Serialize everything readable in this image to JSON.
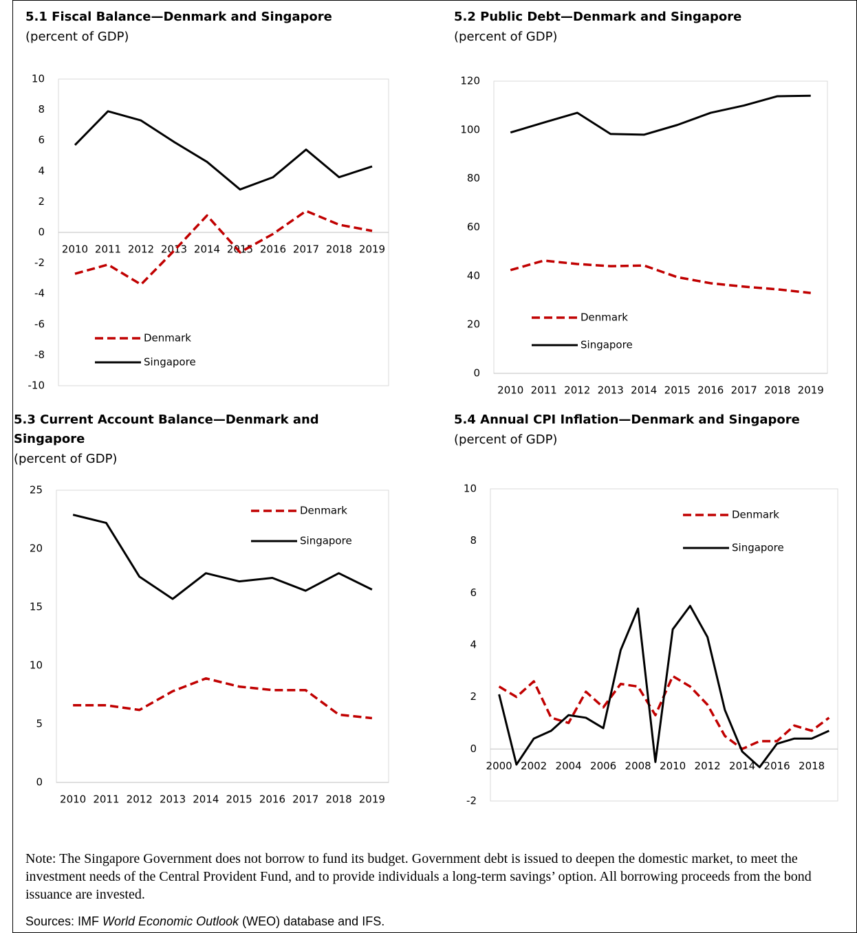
{
  "chart_data": [
    {
      "type": "line",
      "title": "5.1 Fiscal Balance—Denmark and Singapore",
      "subtitle": "(percent of GDP)",
      "categories": [
        "2010",
        "2011",
        "2012",
        "2013",
        "2014",
        "2015",
        "2016",
        "2017",
        "2018",
        "2019"
      ],
      "series": [
        {
          "name": "Denmark",
          "color": "#c00000",
          "dash": true,
          "values": [
            -2.7,
            -2.1,
            -3.4,
            -1.2,
            1.1,
            -1.3,
            -0.1,
            1.4,
            0.5,
            0.1
          ]
        },
        {
          "name": "Singapore",
          "color": "#000000",
          "dash": false,
          "values": [
            5.7,
            7.9,
            7.3,
            5.9,
            4.6,
            2.8,
            3.6,
            5.4,
            3.6,
            4.3
          ]
        }
      ],
      "ylim": [
        -10,
        10
      ],
      "yticks": [
        -10,
        -8,
        -6,
        -4,
        -2,
        0,
        2,
        4,
        6,
        8,
        10
      ],
      "grid": false
    },
    {
      "type": "line",
      "title": "5.2 Public Debt—Denmark and Singapore",
      "subtitle": "(percent of GDP)",
      "categories": [
        "2010",
        "2011",
        "2012",
        "2013",
        "2014",
        "2015",
        "2016",
        "2017",
        "2018",
        "2019"
      ],
      "series": [
        {
          "name": "Denmark",
          "color": "#c00000",
          "dash": true,
          "values": [
            42.4,
            46.3,
            44.9,
            44,
            44.3,
            39.5,
            37,
            35.6,
            34.5,
            33
          ]
        },
        {
          "name": "Singapore",
          "color": "#000000",
          "dash": false,
          "values": [
            98.9,
            103,
            107,
            98.3,
            98,
            102,
            107,
            110,
            113.8,
            114
          ]
        }
      ],
      "ylim": [
        0,
        120
      ],
      "yticks": [
        0,
        20,
        40,
        60,
        80,
        100,
        120
      ],
      "grid": false
    },
    {
      "type": "line",
      "title": "5.3 Current Account Balance—Denmark and Singapore",
      "subtitle": "(percent of GDP)",
      "categories": [
        "2010",
        "2011",
        "2012",
        "2013",
        "2014",
        "2015",
        "2016",
        "2017",
        "2018",
        "2019"
      ],
      "series": [
        {
          "name": "Denmark",
          "color": "#c00000",
          "dash": true,
          "values": [
            6.6,
            6.6,
            6.2,
            7.8,
            8.9,
            8.2,
            7.9,
            7.9,
            5.8,
            5.5
          ]
        },
        {
          "name": "Singapore",
          "color": "#000000",
          "dash": false,
          "values": [
            22.9,
            22.2,
            17.6,
            15.7,
            17.9,
            17.2,
            17.5,
            16.4,
            17.9,
            16.5
          ]
        }
      ],
      "ylim": [
        0,
        25
      ],
      "yticks": [
        0,
        5,
        10,
        15,
        20,
        25
      ],
      "grid": false
    },
    {
      "type": "line",
      "title": "5.4 Annual CPI Inflation—Denmark and Singapore",
      "subtitle": "(percent of GDP)",
      "categories": [
        "2000",
        null,
        "2002",
        null,
        "2004",
        null,
        "2006",
        null,
        "2008",
        null,
        "2010",
        null,
        "2012",
        null,
        "2014",
        null,
        "2016",
        null,
        "2018",
        null
      ],
      "series": [
        {
          "name": "Denmark",
          "color": "#c00000",
          "dash": true,
          "values": [
            2.4,
            2.0,
            2.6,
            1.2,
            1.0,
            2.2,
            1.6,
            2.5,
            2.4,
            1.3,
            2.8,
            2.4,
            1.7,
            0.5,
            0,
            0.3,
            0.3,
            0.9,
            0.7,
            1.2
          ]
        },
        {
          "name": "Singapore",
          "color": "#000000",
          "dash": false,
          "values": [
            2.1,
            -0.6,
            0.4,
            0.7,
            1.3,
            1.2,
            0.8,
            3.8,
            5.4,
            -0.5,
            4.6,
            5.5,
            4.3,
            1.5,
            -0.1,
            -0.7,
            0.2,
            0.4,
            0.4,
            0.7
          ]
        }
      ],
      "ylim": [
        -2,
        10
      ],
      "yticks": [
        -2,
        0,
        2,
        4,
        6,
        8,
        10
      ],
      "grid": false
    }
  ],
  "note": "Note: The Singapore Government does not borrow to fund its budget. Government debt is issued to deepen the domestic market, to meet the investment needs of the Central Provident Fund, and to provide individuals a long-term savings’ option. All borrowing proceeds from the bond issuance are invested.",
  "sources": [
    "Sources: IMF ",
    "World Economic Outlook",
    " (WEO) database and IFS."
  ]
}
